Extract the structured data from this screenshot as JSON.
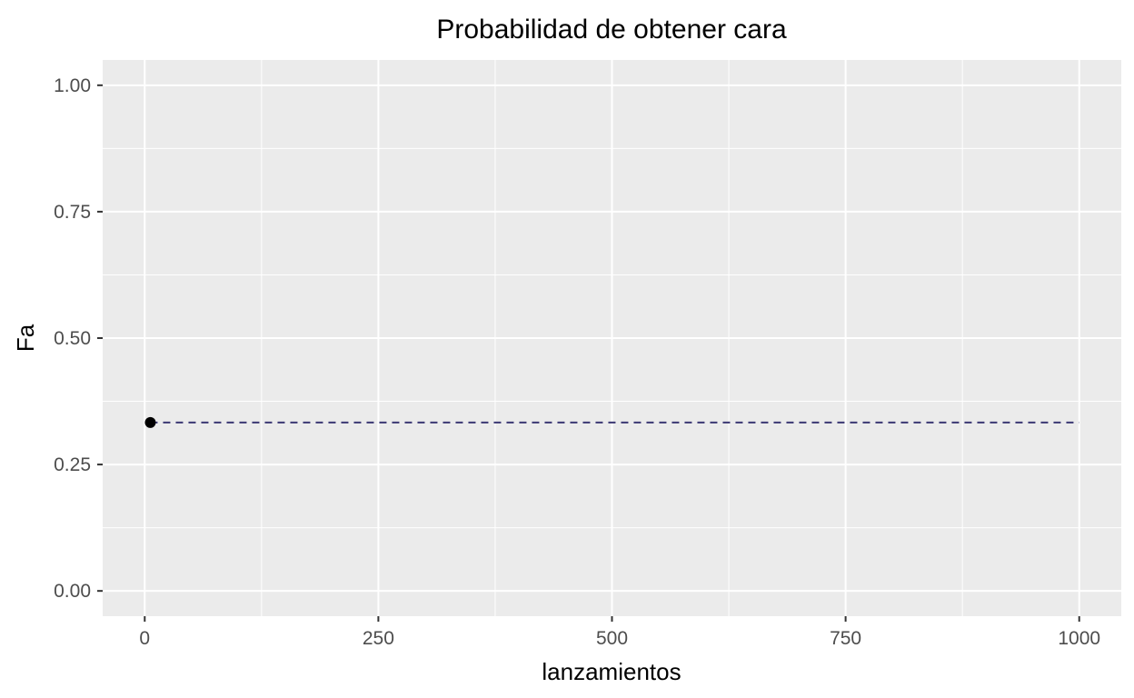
{
  "chart_data": {
    "type": "line",
    "title": "Probabilidad de obtener cara",
    "xlabel": "lanzamientos",
    "ylabel": "Fa",
    "xlim": [
      -45,
      1045
    ],
    "ylim": [
      -0.05,
      1.05
    ],
    "x_ticks": [
      0,
      250,
      500,
      750,
      1000
    ],
    "y_ticks": [
      0.0,
      0.25,
      0.5,
      0.75,
      1.0
    ],
    "x_tick_labels": [
      "0",
      "250",
      "500",
      "750",
      "1000"
    ],
    "y_tick_labels": [
      "0.00",
      "0.25",
      "0.50",
      "0.75",
      "1.00"
    ],
    "grid": true,
    "legend": "none",
    "points": [
      {
        "x": 6,
        "y": 0.333
      }
    ],
    "reference_line": {
      "y": 0.333,
      "x_from": 6,
      "x_to": 1000,
      "style": "dashed"
    },
    "colors": {
      "panel": "#EBEBEB",
      "grid": "#FFFFFF",
      "point": "#000000",
      "reference_line": "#3B3873",
      "tick_text": "#4D4D4D"
    }
  }
}
